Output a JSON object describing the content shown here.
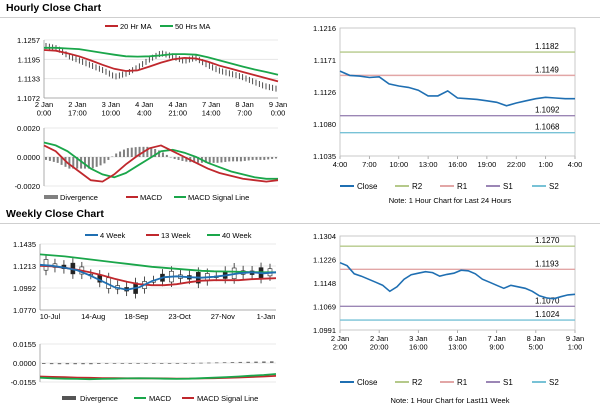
{
  "sections": {
    "hourly_title": "Hourly Close Chart",
    "weekly_title": "Weekly Close Chart",
    "hourly_note": "Note: 1 Hour Chart for Last 24 Hours",
    "weekly_note": "Note: 1 Hour Chart for Last11 Week"
  },
  "colors": {
    "ma_short": "#c0282d",
    "ma_long": "#1aa64a",
    "close": "#1f6fb2",
    "r2": "#b5c98a",
    "r1": "#e2a6a6",
    "s1": "#9b86b5",
    "s2": "#78c2d6",
    "macd": "#c0282d",
    "signal": "#1aa64a",
    "divergence": "#808080"
  },
  "chart_data": [
    {
      "id": "hourly_price",
      "type": "line",
      "legend": [
        "20 Hr MA",
        "50 Hrs MA"
      ],
      "x_ticks": [
        "2 Jan\n0:00",
        "2 Jan\n17:00",
        "3 Jan\n10:00",
        "4 Jan\n4:00",
        "4 Jan\n21:00",
        "7 Jan\n14:00",
        "8 Jan\n7:00",
        "9 Jan\n0:00"
      ],
      "y_ticks": [
        "1.1257",
        "1.1195",
        "1.1133",
        "1.1072"
      ],
      "ylim": [
        1.1072,
        1.1257
      ],
      "series": [
        {
          "name": "20 Hr MA",
          "values": [
            1.1225,
            1.1223,
            1.1215,
            1.1205,
            1.1192,
            1.1178,
            1.1165,
            1.1158,
            1.116,
            1.1172,
            1.1185,
            1.1195,
            1.12,
            1.1198,
            1.1188,
            1.1175,
            1.1165,
            1.1155,
            1.1145,
            1.1135,
            1.1125
          ]
        },
        {
          "name": "50 Hrs MA",
          "values": [
            1.1232,
            1.1232,
            1.123,
            1.1228,
            1.1222,
            1.1216,
            1.121,
            1.1205,
            1.1204,
            1.1205,
            1.1208,
            1.1212,
            1.1212,
            1.121,
            1.1202,
            1.1192,
            1.1182,
            1.1172,
            1.1163,
            1.1155,
            1.1146
          ]
        },
        {
          "name": "Close",
          "values": [
            1.1238,
            1.123,
            1.1205,
            1.119,
            1.1175,
            1.116,
            1.114,
            1.115,
            1.117,
            1.1195,
            1.1215,
            1.1205,
            1.119,
            1.12,
            1.1178,
            1.116,
            1.115,
            1.114,
            1.1125,
            1.111,
            1.1102
          ]
        }
      ]
    },
    {
      "id": "hourly_macd",
      "type": "line",
      "y_ticks": [
        "0.0020",
        "0.0000",
        "-0.0020"
      ],
      "ylim": [
        -0.002,
        0.002
      ],
      "legend": [
        "Divergence",
        "MACD",
        "MACD Signal Line"
      ],
      "series": [
        {
          "name": "MACD",
          "values": [
            0.0008,
            0.0004,
            -0.0004,
            -0.001,
            -0.0016,
            -0.0017,
            -0.0012,
            -0.0005,
            0.0001,
            0.0006,
            0.0008,
            0.0004,
            0.0,
            -0.0004,
            -0.0008,
            -0.0011,
            -0.0013,
            -0.0015,
            -0.0016,
            -0.0017,
            -0.0016
          ]
        },
        {
          "name": "MACD Signal Line",
          "values": [
            0.001,
            0.0008,
            0.0004,
            -0.0002,
            -0.0008,
            -0.0012,
            -0.0014,
            -0.0011,
            -0.0006,
            -0.0001,
            0.0004,
            0.0005,
            0.0003,
            0.0,
            -0.0004,
            -0.0007,
            -0.001,
            -0.0012,
            -0.0014,
            -0.0015,
            -0.0015
          ]
        },
        {
          "name": "Divergence",
          "values": [
            -0.0002,
            -0.0004,
            -0.0008,
            -0.0008,
            -0.0008,
            -0.0005,
            0.0002,
            0.0006,
            0.0007,
            0.0007,
            0.0004,
            -0.0001,
            -0.0003,
            -0.0004,
            -0.0004,
            -0.0004,
            -0.0003,
            -0.0003,
            -0.0002,
            -0.0002,
            -0.0001
          ]
        }
      ]
    },
    {
      "id": "hourly_levels",
      "type": "line",
      "y_ticks": [
        "1.1216",
        "1.1171",
        "1.1126",
        "1.1080",
        "1.1035"
      ],
      "ylim": [
        1.1035,
        1.1216
      ],
      "x_ticks": [
        "4:00",
        "7:00",
        "10:00",
        "13:00",
        "16:00",
        "19:00",
        "22:00",
        "1:00",
        "4:00"
      ],
      "levels": [
        {
          "name": "R2",
          "value": 1.1182,
          "label": "1.1182"
        },
        {
          "name": "R1",
          "value": 1.1149,
          "label": "1.1149"
        },
        {
          "name": "S1",
          "value": 1.1092,
          "label": "1.1092"
        },
        {
          "name": "S2",
          "value": 1.1068,
          "label": "1.1068"
        }
      ],
      "legend": [
        "Close",
        "R2",
        "R1",
        "S1",
        "S2"
      ],
      "series": [
        {
          "name": "Close",
          "values": [
            1.1155,
            1.1149,
            1.1148,
            1.1146,
            1.1147,
            1.1137,
            1.1134,
            1.1132,
            1.1128,
            1.112,
            1.112,
            1.1127,
            1.1117,
            1.1116,
            1.1115,
            1.1113,
            1.1111,
            1.1106,
            1.111,
            1.1113,
            1.1116,
            1.1118,
            1.1117,
            1.1116,
            1.1116
          ]
        }
      ]
    },
    {
      "id": "weekly_price",
      "type": "line",
      "legend": [
        "4 Week",
        "13 Week",
        "40 Week"
      ],
      "x_ticks": [
        "10-Jul",
        "14-Aug",
        "18-Sep",
        "23-Oct",
        "27-Nov",
        "1-Jan"
      ],
      "y_ticks": [
        "1.1435",
        "1.1213",
        "1.0992",
        "1.0770"
      ],
      "ylim": [
        1.077,
        1.1435
      ],
      "series": [
        {
          "name": "4 Week",
          "values": [
            1.1225,
            1.1215,
            1.1195,
            1.117,
            1.112,
            1.106,
            1.1,
            1.0975,
            1.1,
            1.106,
            1.11,
            1.111,
            1.11,
            1.1095,
            1.1105,
            1.112,
            1.114,
            1.115,
            1.114,
            1.115
          ]
        },
        {
          "name": "13 Week",
          "values": [
            1.1215,
            1.121,
            1.1195,
            1.1175,
            1.115,
            1.112,
            1.1085,
            1.1055,
            1.103,
            1.102,
            1.102,
            1.103,
            1.105,
            1.1065,
            1.107,
            1.107,
            1.107,
            1.108,
            1.1085,
            1.109
          ]
        },
        {
          "name": "40 Week",
          "values": [
            1.133,
            1.132,
            1.131,
            1.1295,
            1.128,
            1.1265,
            1.125,
            1.1235,
            1.122,
            1.1205,
            1.1195,
            1.1185,
            1.1175,
            1.1165,
            1.116,
            1.1158,
            1.1155,
            1.1152,
            1.115,
            1.115
          ]
        }
      ]
    },
    {
      "id": "weekly_macd",
      "type": "line",
      "y_ticks": [
        "0.0155",
        "0.0000",
        "-0.0155"
      ],
      "ylim": [
        -0.0155,
        0.0155
      ],
      "legend": [
        "Divergence",
        "MACD",
        "MACD Signal Line"
      ],
      "series": [
        {
          "name": "MACD",
          "values": [
            -0.012,
            -0.0125,
            -0.0128,
            -0.013,
            -0.0132,
            -0.013,
            -0.0128,
            -0.0126,
            -0.0125,
            -0.0126,
            -0.0128,
            -0.013,
            -0.0128,
            -0.0124,
            -0.012,
            -0.0115,
            -0.011,
            -0.0104,
            -0.0098,
            -0.009
          ]
        },
        {
          "name": "MACD Signal Line",
          "values": [
            -0.011,
            -0.0113,
            -0.0116,
            -0.0119,
            -0.0121,
            -0.0123,
            -0.0124,
            -0.0125,
            -0.0125,
            -0.0125,
            -0.0126,
            -0.0127,
            -0.0127,
            -0.0126,
            -0.0124,
            -0.0121,
            -0.0118,
            -0.0114,
            -0.011,
            -0.0105
          ]
        },
        {
          "name": "Divergence",
          "values": [
            -0.0008,
            -0.001,
            -0.001,
            -0.001,
            -0.001,
            -0.0006,
            -0.0004,
            -0.0001,
            0.0,
            -0.0001,
            -0.0002,
            -0.0003,
            -0.0001,
            0.0002,
            0.0004,
            0.0006,
            0.0008,
            0.001,
            0.0012,
            0.0014
          ]
        }
      ]
    },
    {
      "id": "weekly_levels",
      "type": "line",
      "y_ticks": [
        "1.1304",
        "1.1226",
        "1.1148",
        "1.1069",
        "1.0991"
      ],
      "ylim": [
        1.0991,
        1.1304
      ],
      "x_ticks": [
        "2 Jan\n2:00",
        "2 Jan\n20:00",
        "3 Jan\n16:00",
        "6 Jan\n13:00",
        "7 Jan\n9:00",
        "8 Jan\n5:00",
        "9 Jan\n1:00"
      ],
      "levels": [
        {
          "name": "R2",
          "value": 1.127,
          "label": "1.1270"
        },
        {
          "name": "R1",
          "value": 1.1193,
          "label": "1.1193"
        },
        {
          "name": "S1",
          "value": 1.107,
          "label": "1.1070"
        },
        {
          "name": "S2",
          "value": 1.1024,
          "label": "1.1024"
        }
      ],
      "legend": [
        "Close",
        "R2",
        "R1",
        "S1",
        "S2"
      ],
      "series": [
        {
          "name": "Close",
          "values": [
            1.1215,
            1.1205,
            1.1178,
            1.117,
            1.116,
            1.115,
            1.114,
            1.112,
            1.1135,
            1.116,
            1.1175,
            1.118,
            1.1185,
            1.1182,
            1.117,
            1.1176,
            1.118,
            1.119,
            1.1188,
            1.1178,
            1.116,
            1.115,
            1.114,
            1.113,
            1.114,
            1.1135,
            1.113,
            1.112,
            1.1105,
            1.1098,
            1.1095,
            1.1102,
            1.1108,
            1.111
          ]
        }
      ]
    }
  ]
}
